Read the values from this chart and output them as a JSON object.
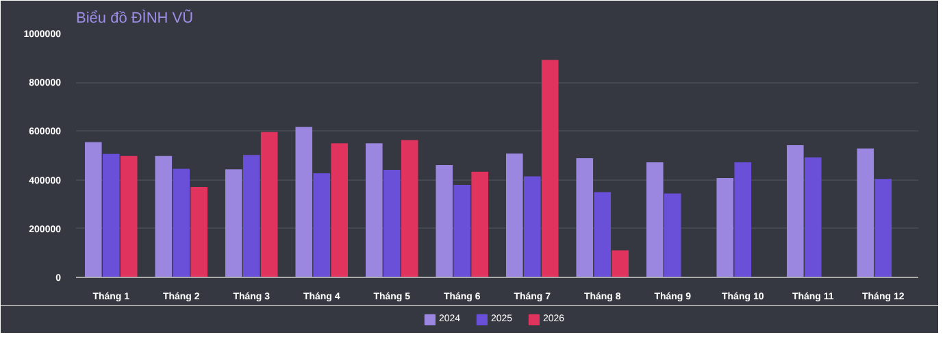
{
  "chart_data": {
    "type": "bar",
    "title": "Biểu đồ ĐÌNH VŨ",
    "categories": [
      "Tháng 1",
      "Tháng 2",
      "Tháng 3",
      "Tháng 4",
      "Tháng 5",
      "Tháng 6",
      "Tháng 7",
      "Tháng 8",
      "Tháng 9",
      "Tháng 10",
      "Tháng 11",
      "Tháng 12"
    ],
    "series": [
      {
        "name": "2024",
        "color": "#9b87e0",
        "values": [
          555000,
          498000,
          443000,
          617000,
          550000,
          461000,
          508000,
          489000,
          472000,
          407000,
          542000,
          529000
        ]
      },
      {
        "name": "2025",
        "color": "#6a4fd9",
        "values": [
          506000,
          445000,
          502000,
          427000,
          441000,
          379000,
          414000,
          350000,
          344000,
          472000,
          492000,
          404000
        ]
      },
      {
        "name": "2026",
        "color": "#e0335e",
        "values": [
          498000,
          371000,
          596000,
          550000,
          563000,
          433000,
          892000,
          111000,
          null,
          null,
          null,
          null
        ]
      }
    ],
    "ylim": [
      0,
      1000000
    ],
    "yticks": [
      0,
      200000,
      400000,
      600000,
      800000,
      1000000
    ],
    "grid": "y",
    "legend": "bottom"
  }
}
